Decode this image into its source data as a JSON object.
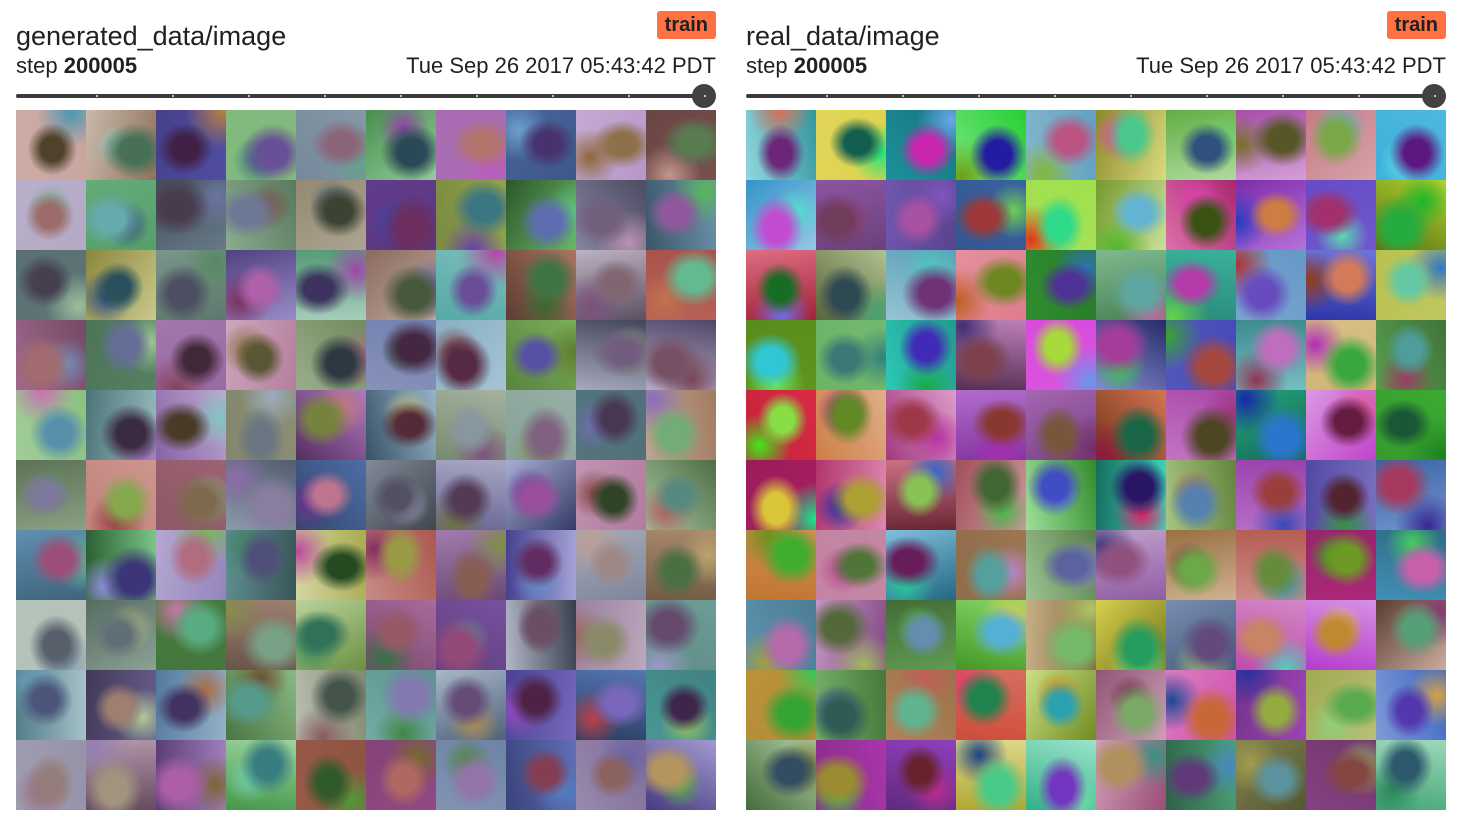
{
  "cards": [
    {
      "id": "generated",
      "title": "generated_data/image",
      "run": "train",
      "step_label": "step",
      "step": "200005",
      "timestamp": "Tue Sep 26 2017 05:43:42 PDT",
      "slider": {
        "position_fraction": 1.0
      },
      "image": {
        "rows": 10,
        "cols": 10,
        "content": "grid of 100 generated 32x32 CIFAR-10-style sample images"
      }
    },
    {
      "id": "real",
      "title": "real_data/image",
      "run": "train",
      "step_label": "step",
      "step": "200005",
      "timestamp": "Tue Sep 26 2017 05:43:42 PDT",
      "slider": {
        "position_fraction": 1.0
      },
      "image": {
        "rows": 10,
        "cols": 10,
        "content": "grid of 100 real CIFAR-10 images"
      }
    }
  ],
  "colors": {
    "badge": "#ff7043",
    "slider_track": "#3c3c3c",
    "slider_knob": "#424242",
    "text": "#212121"
  }
}
